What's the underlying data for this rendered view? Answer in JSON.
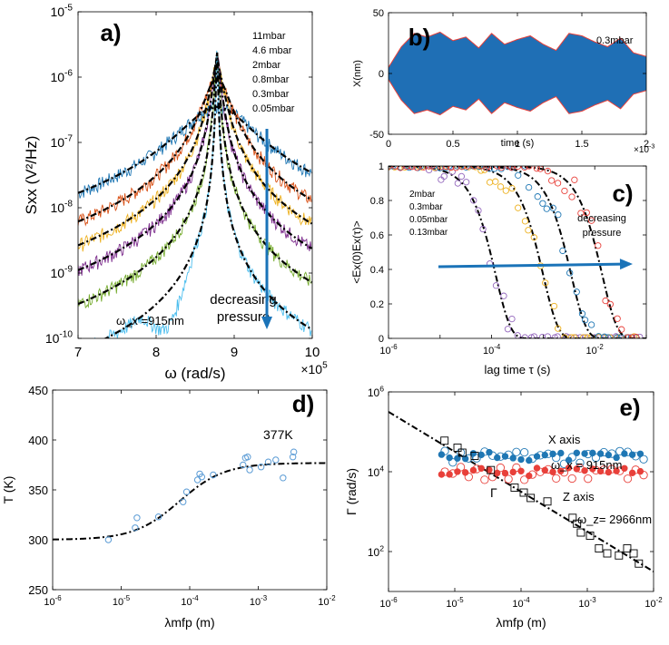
{
  "chart_data": [
    {
      "panel": "a)",
      "type": "line",
      "title": "",
      "xlabel": "ω (rad/s)",
      "x_multiplier": "×10^5",
      "ylabel": "Sxx (V²/Hz)",
      "xlim": [
        7,
        10
      ],
      "ylim_log10": [
        -10,
        -5
      ],
      "x_ticks": [
        "7",
        "8",
        "9",
        "10"
      ],
      "y_ticks": [
        "10^-10",
        "10^-9",
        "10^-8",
        "10^-7",
        "10^-6",
        "10^-5"
      ],
      "legend": [
        "11mbar",
        "4.6 mbar",
        "2mbar",
        "0.8mbar",
        "0.3mbar",
        "0.05mbar"
      ],
      "annotation_omega": "ω_x =915nm",
      "arrow_label_1": "decreasing",
      "arrow_label_2": "pressure",
      "fit_center": 8.78,
      "series": [
        {
          "name": "11mbar",
          "peak": 3.5e-07,
          "gamma": 0.4,
          "color": "#1f77b4"
        },
        {
          "name": "4.6 mbar",
          "peak": 1e-06,
          "gamma": 0.14,
          "color": "#d95319"
        },
        {
          "name": "2mbar",
          "peak": 1.5e-06,
          "gamma": 0.075,
          "color": "#edb120"
        },
        {
          "name": "0.8mbar",
          "peak": 1.9e-06,
          "gamma": 0.043,
          "color": "#7e2f8e"
        },
        {
          "name": "0.3mbar",
          "peak": 2.2e-06,
          "gamma": 0.022,
          "color": "#77ac30"
        },
        {
          "name": "0.05mbar",
          "peak": 2.5e-06,
          "gamma": 0.009,
          "color": "#4dbeee"
        }
      ]
    },
    {
      "panel": "b)",
      "type": "line",
      "xlabel": "time (s)",
      "x_multiplier": "×10^-3",
      "ylabel": "X(nm)",
      "xlim": [
        0,
        2
      ],
      "ylim": [
        -50,
        50
      ],
      "x_ticks": [
        "0",
        "0.5",
        "1",
        "1.5",
        "2"
      ],
      "y_ticks": [
        "-50",
        "0",
        "50"
      ],
      "legend": [
        "0.3mbar"
      ],
      "envelope_x": [
        0,
        0.1,
        0.2,
        0.3,
        0.4,
        0.5,
        0.6,
        0.7,
        0.8,
        0.9,
        1.0,
        1.1,
        1.2,
        1.3,
        1.4,
        1.5,
        1.6,
        1.7,
        1.8,
        1.9,
        2.0
      ],
      "envelope_amplitude_nm": [
        5,
        22,
        33,
        30,
        34,
        27,
        30,
        21,
        33,
        24,
        28,
        31,
        24,
        19,
        33,
        31,
        26,
        22,
        29,
        17,
        14
      ]
    },
    {
      "panel": "c)",
      "type": "scatter",
      "xlabel": "lag time τ (s)",
      "ylabel": "<Ex(0)Ex(τ)>",
      "xlim_log10": [
        -6,
        -1
      ],
      "ylim": [
        0,
        1
      ],
      "x_ticks": [
        "10^-6",
        "10^-4",
        "10^-2"
      ],
      "y_ticks": [
        "0",
        "0.2",
        "0.4",
        "0.6",
        "0.8",
        "1"
      ],
      "legend": [
        "2mbar",
        "0.3mbar",
        "0.05mbar",
        "0.13mbar"
      ],
      "arrow_label_1": "decreasing",
      "arrow_label_2": "pressure",
      "series": [
        {
          "name": "2mbar",
          "tau": 0.00012,
          "color": "#9467bd"
        },
        {
          "name": "0.3mbar",
          "tau": 0.001,
          "color": "#edb120"
        },
        {
          "name": "0.05mbar",
          "tau": 0.0035,
          "color": "#1f77b4"
        },
        {
          "name": "0.13mbar",
          "tau": 0.014,
          "color": "#e8403a"
        }
      ]
    },
    {
      "panel": "d)",
      "type": "scatter",
      "xlabel": "λmfp (m)",
      "ylabel": "T (K)",
      "xlim_log10": [
        -6,
        -2
      ],
      "ylim": [
        250,
        450
      ],
      "x_ticks": [
        "10^-6",
        "10^-5",
        "10^-4",
        "10^-3",
        "10^-2"
      ],
      "y_ticks": [
        "250",
        "300",
        "350",
        "400",
        "450"
      ],
      "annotation": "377K",
      "fit": {
        "low": 300,
        "high": 377,
        "center_log10": -4.15,
        "width": 0.33
      },
      "points": [
        {
          "x": 6.5e-06,
          "y": 300
        },
        {
          "x": 1.6e-05,
          "y": 312
        },
        {
          "x": 1.7e-05,
          "y": 322
        },
        {
          "x": 3.5e-05,
          "y": 323
        },
        {
          "x": 8e-05,
          "y": 338
        },
        {
          "x": 9e-05,
          "y": 348
        },
        {
          "x": 0.00013,
          "y": 360
        },
        {
          "x": 0.00014,
          "y": 366
        },
        {
          "x": 0.00015,
          "y": 363
        },
        {
          "x": 0.00022,
          "y": 365
        },
        {
          "x": 0.0006,
          "y": 375
        },
        {
          "x": 0.00065,
          "y": 382
        },
        {
          "x": 0.0007,
          "y": 383
        },
        {
          "x": 0.00075,
          "y": 370
        },
        {
          "x": 0.0011,
          "y": 373
        },
        {
          "x": 0.0014,
          "y": 378
        },
        {
          "x": 0.0018,
          "y": 380
        },
        {
          "x": 0.0023,
          "y": 362
        },
        {
          "x": 0.0032,
          "y": 383
        },
        {
          "x": 0.0033,
          "y": 388
        }
      ]
    },
    {
      "panel": "e)",
      "type": "scatter",
      "xlabel": "λmfp (m)",
      "ylabel": "Γ (rad/s)",
      "xlim_log10": [
        -6,
        -2
      ],
      "ylim_log10": [
        1,
        6
      ],
      "x_ticks": [
        "10^-6",
        "10^-5",
        "10^-4",
        "10^-3",
        "10^-2"
      ],
      "y_ticks": [
        "10^2",
        "10^4",
        "10^6"
      ],
      "annotations": [
        "X axis",
        "ω_x = 915nm",
        "Z axis",
        "ω_z= 2966nm",
        "Γ"
      ],
      "fit_line": {
        "log10_x": [
          -6,
          -2
        ],
        "log10_y": [
          5.5,
          1.5
        ]
      },
      "x_axis_level": 25000,
      "z_axis_level": 10000,
      "z_points": [
        {
          "x": 7e-06,
          "y": 60000
        },
        {
          "x": 1.1e-05,
          "y": 40000
        },
        {
          "x": 1.3e-05,
          "y": 30000
        },
        {
          "x": 2e-05,
          "y": 25000
        },
        {
          "x": 3.5e-05,
          "y": 11000
        },
        {
          "x": 8e-05,
          "y": 4000
        },
        {
          "x": 0.00011,
          "y": 3000
        },
        {
          "x": 0.00014,
          "y": 2200
        },
        {
          "x": 0.00025,
          "y": 1800
        },
        {
          "x": 0.0006,
          "y": 700
        },
        {
          "x": 0.0007,
          "y": 500
        },
        {
          "x": 0.0008,
          "y": 300
        },
        {
          "x": 0.0011,
          "y": 250
        },
        {
          "x": 0.0015,
          "y": 120
        },
        {
          "x": 0.002,
          "y": 90
        },
        {
          "x": 0.003,
          "y": 80
        },
        {
          "x": 0.004,
          "y": 120
        },
        {
          "x": 0.005,
          "y": 90
        },
        {
          "x": 0.006,
          "y": 50
        }
      ]
    }
  ]
}
